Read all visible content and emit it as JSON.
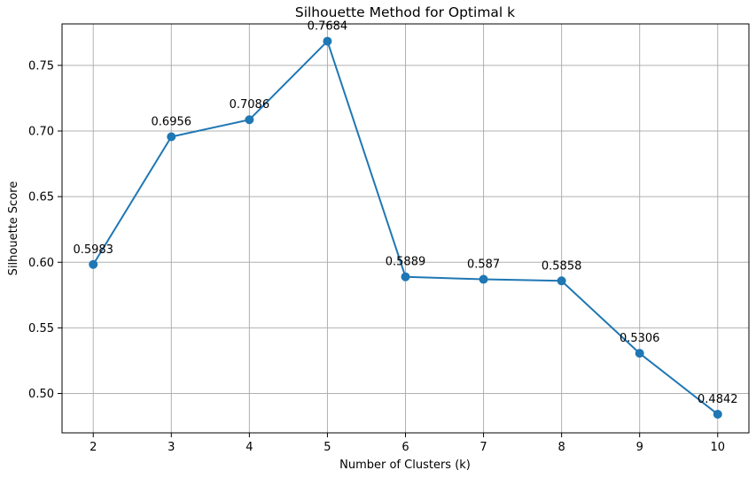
{
  "chart_data": {
    "type": "line",
    "title": "Silhouette Method for Optimal k",
    "xlabel": "Number of Clusters (k)",
    "ylabel": "Silhouette Score",
    "x": [
      2,
      3,
      4,
      5,
      6,
      7,
      8,
      9,
      10
    ],
    "series": [
      {
        "values": [
          0.5983,
          0.6956,
          0.7086,
          0.7684,
          0.5889,
          0.587,
          0.5858,
          0.5306,
          0.4842
        ],
        "data_labels": [
          "0.5983",
          "0.6956",
          "0.7086",
          "0.7684",
          "0.5889",
          "0.587",
          "0.5858",
          "0.5306",
          "0.4842"
        ],
        "color": "#1f77b4",
        "marker": "circle"
      }
    ],
    "xticks": [
      2,
      3,
      4,
      5,
      6,
      7,
      8,
      9,
      10
    ],
    "xtick_labels": [
      "2",
      "3",
      "4",
      "5",
      "6",
      "7",
      "8",
      "9",
      "10"
    ],
    "yticks": [
      0.5,
      0.55,
      0.6,
      0.65,
      0.7,
      0.75
    ],
    "ytick_labels": [
      "0.50",
      "0.55",
      "0.60",
      "0.65",
      "0.70",
      "0.75"
    ],
    "xlim": [
      1.6,
      10.4
    ],
    "ylim": [
      0.47,
      0.7816
    ],
    "grid": true,
    "grid_color": "#b0b0b0"
  }
}
